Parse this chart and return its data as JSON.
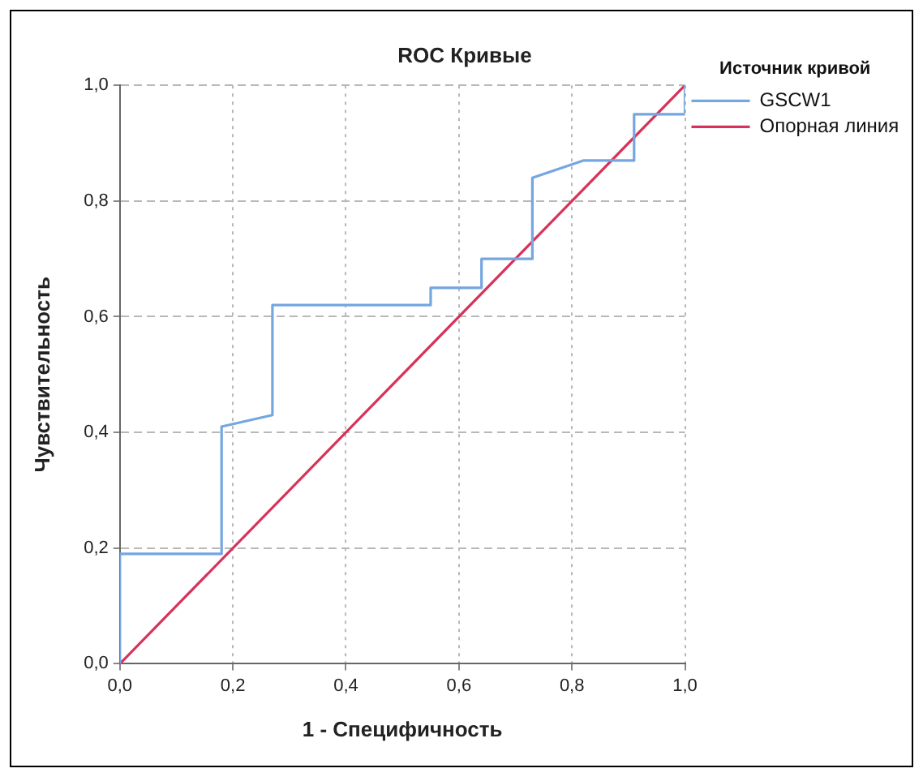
{
  "chart_data": {
    "type": "line",
    "title": "ROC Кривые",
    "xlabel": "1 - Специфичность",
    "ylabel": "Чувствительность",
    "legend_title": "Источник кривой",
    "xlim": [
      0,
      1
    ],
    "ylim": [
      0,
      1
    ],
    "xticks": [
      {
        "value": 0,
        "label": "0,0"
      },
      {
        "value": 0.2,
        "label": "0,2"
      },
      {
        "value": 0.4,
        "label": "0,4"
      },
      {
        "value": 0.6,
        "label": "0,6"
      },
      {
        "value": 0.8,
        "label": "0,8"
      },
      {
        "value": 1,
        "label": "1,0"
      }
    ],
    "yticks": [
      {
        "value": 0,
        "label": "0,0"
      },
      {
        "value": 0.2,
        "label": "0,2"
      },
      {
        "value": 0.4,
        "label": "0,4"
      },
      {
        "value": 0.6,
        "label": "0,6"
      },
      {
        "value": 0.8,
        "label": "0,8"
      },
      {
        "value": 1,
        "label": "1,0"
      }
    ],
    "grid": true,
    "legend": "right",
    "marker": "none",
    "line_style": "solid",
    "series": [
      {
        "name": "GSCW1",
        "color": "#74a6e0",
        "x": [
          0,
          0,
          0.18,
          0.18,
          0.27,
          0.27,
          0.55,
          0.55,
          0.64,
          0.64,
          0.73,
          0.73,
          0.82,
          0.91,
          0.91,
          1,
          1
        ],
        "values": [
          0,
          0.19,
          0.19,
          0.41,
          0.43,
          0.62,
          0.62,
          0.65,
          0.65,
          0.7,
          0.7,
          0.84,
          0.87,
          0.87,
          0.95,
          0.95,
          1
        ]
      },
      {
        "name": "Опорная линия",
        "color": "#d8325a",
        "x": [
          0,
          1
        ],
        "values": [
          0,
          1
        ]
      }
    ]
  }
}
